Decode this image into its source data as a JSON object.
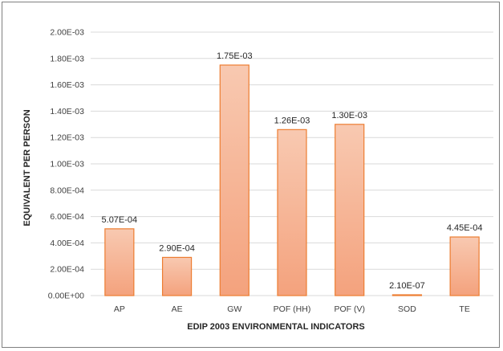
{
  "chart_data": {
    "type": "bar",
    "categories": [
      "AP",
      "AE",
      "GW",
      "POF (HH)",
      "POF (V)",
      "SOD",
      "TE"
    ],
    "values": [
      0.000507,
      0.00029,
      0.00175,
      0.00126,
      0.0013,
      2.1e-07,
      0.000445
    ],
    "data_labels": [
      "5.07E-04",
      "2.90E-04",
      "1.75E-03",
      "1.26E-03",
      "1.30E-03",
      "2.10E-07",
      "4.45E-04"
    ],
    "ylim": [
      0,
      0.002
    ],
    "yticks": [
      0,
      0.0002,
      0.0004,
      0.0006,
      0.0008,
      0.001,
      0.0012,
      0.0014,
      0.0016,
      0.0018,
      0.002
    ],
    "ytick_labels": [
      "0.00E+00",
      "2.00E-04",
      "4.00E-04",
      "6.00E-04",
      "8.00E-04",
      "1.00E-03",
      "1.20E-03",
      "1.40E-03",
      "1.60E-03",
      "1.80E-03",
      "2.00E-03"
    ],
    "xlabel": "EDIP 2003 ENVIRONMENTAL INDICATORS",
    "ylabel": "EQUIVALENT PER PERSON",
    "grid": true,
    "legend": "none",
    "colors": {
      "bar_fill_top": "#f8c9b1",
      "bar_fill_bottom": "#f4a27d",
      "bar_stroke": "#ed7d31",
      "grid": "#d9d9d9",
      "text": "#404040"
    }
  }
}
